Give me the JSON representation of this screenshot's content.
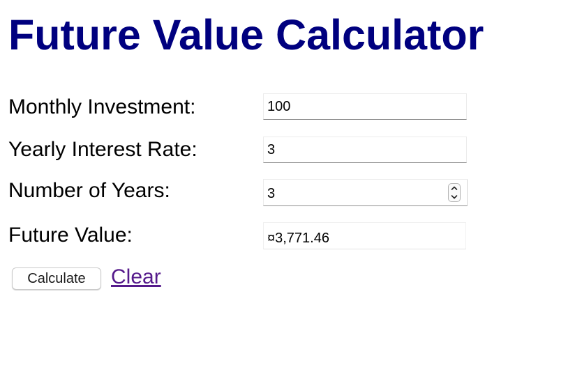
{
  "header": {
    "title": "Future Value Calculator"
  },
  "form": {
    "monthly_investment": {
      "label": "Monthly Investment:",
      "value": "100"
    },
    "yearly_interest_rate": {
      "label": "Yearly Interest Rate:",
      "value": "3"
    },
    "number_of_years": {
      "label": "Number of Years:",
      "value": "3"
    },
    "future_value": {
      "label": "Future Value:",
      "value": "¤3,771.46"
    }
  },
  "actions": {
    "calculate_label": "Calculate",
    "clear_label": "Clear"
  },
  "icons": {
    "stepper_up": "chevron-up-icon",
    "stepper_down": "chevron-down-icon"
  },
  "colors": {
    "title": "#00007f",
    "link": "#551a8b",
    "text": "#000000"
  }
}
